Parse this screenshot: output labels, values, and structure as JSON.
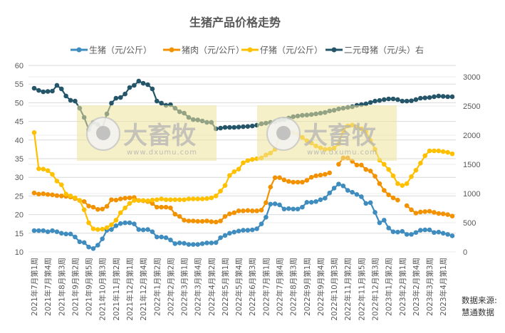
{
  "chart_data": {
    "type": "line",
    "title": "生猪产品价格走势",
    "legend_position": "top",
    "grid": true,
    "y_left": {
      "ylim": [
        10,
        60
      ],
      "ticks": [
        10,
        15,
        20,
        25,
        30,
        35,
        40,
        45,
        50,
        55,
        60
      ]
    },
    "y_right": {
      "ylim": [
        0,
        3000
      ],
      "ticks": [
        0,
        500,
        1000,
        1500,
        2000,
        2500,
        3000
      ]
    },
    "x_tick_labels": [
      "2021年7月第1周",
      "2021年7月第4周",
      "2021年8月第3周",
      "2021年9月第2周",
      "2021年9月第5周",
      "2021年10月第3周",
      "2021年11月第2周",
      "2021年12月第1周",
      "2021年12月第4周",
      "2022年1月第2周",
      "2022年2月第2周",
      "2022年3月第1周",
      "2022年3月第4周",
      "2022年4月第2周",
      "2022年5月第1周",
      "2022年5月第4周",
      "2022年6月第3周",
      "2022年7月第1周",
      "2022年7月第4周",
      "2022年8月第3周",
      "2022年9月第1周",
      "2022年9月第4周",
      "2022年10月第3周",
      "2022年11月第2周",
      "2022年11月第5周",
      "2022年12月第3周",
      "2023年1月第2周",
      "2023年2月第1周",
      "2023年2月第4周",
      "2023年3月第3周",
      "2023年4月第1周"
    ],
    "x_tick_every": 3,
    "series": [
      {
        "name": "生猪（元/公斤）",
        "axis": "left",
        "color": "#3F8CBF",
        "values": [
          15.7,
          15.7,
          15.7,
          15.4,
          15.7,
          15.4,
          15.0,
          14.8,
          14.8,
          14.0,
          12.7,
          12.5,
          11.3,
          10.9,
          11.8,
          13.5,
          15.8,
          16.0,
          17.0,
          17.6,
          17.8,
          17.8,
          17.5,
          16.0,
          15.9,
          16.0,
          15.4,
          14.0,
          14.0,
          13.8,
          13.2,
          12.2,
          12.4,
          12.3,
          12.0,
          12.0,
          12.0,
          12.2,
          12.4,
          12.4,
          12.5,
          13.8,
          14.4,
          15.0,
          15.3,
          15.6,
          15.8,
          15.8,
          15.9,
          16.2,
          17.5,
          19.3,
          22.8,
          22.9,
          22.6,
          21.5,
          21.6,
          21.5,
          21.5,
          22.0,
          23.3,
          23.3,
          23.5,
          24.0,
          24.4,
          25.8,
          27.1,
          28.2,
          27.7,
          26.5,
          26.0,
          25.4,
          24.8,
          23.0,
          23.2,
          20.6,
          17.8,
          18.5,
          16.4,
          15.4,
          15.3,
          15.5,
          14.7,
          14.7,
          15.2,
          15.8,
          15.9,
          15.9,
          15.2,
          15.3,
          15.0,
          14.7,
          14.3
        ]
      },
      {
        "name": "猪肉（元/公斤）",
        "axis": "left",
        "color": "#F39200",
        "values": [
          25.8,
          25.5,
          25.6,
          25.4,
          25.3,
          25.1,
          25.0,
          24.9,
          24.7,
          24.3,
          23.8,
          23.5,
          22.3,
          22.0,
          21.4,
          21.5,
          22.2,
          24.0,
          23.9,
          24.2,
          24.4,
          24.5,
          24.6,
          23.8,
          23.7,
          23.5,
          23.0,
          22.0,
          22.0,
          22.0,
          21.8,
          20.1,
          19.5,
          18.5,
          18.3,
          18.3,
          18.2,
          18.2,
          18.3,
          18.1,
          18.0,
          18.3,
          19.5,
          20.2,
          20.5,
          21.0,
          21.0,
          21.1,
          21.0,
          21.0,
          21.2,
          23.2,
          27.4,
          29.9,
          29.9,
          29.3,
          28.9,
          28.7,
          28.7,
          28.7,
          29.2,
          30.0,
          30.4,
          30.6,
          30.8,
          31.2,
          null,
          33.5,
          35.2,
          35.2,
          34.3,
          33.3,
          33.3,
          32.1,
          31.7,
          30.3,
          28.3,
          26.5,
          25.3,
          24.5,
          23.9,
          null,
          22.4,
          21.3,
          20.4,
          20.7,
          20.8,
          20.9,
          20.6,
          20.3,
          20.2,
          20.0,
          19.6
        ]
      },
      {
        "name": "仔猪（元/公斤）",
        "axis": "left",
        "color": "#FFC000",
        "values": [
          42.0,
          32.3,
          32.2,
          31.8,
          30.8,
          29.0,
          28.0,
          25.5,
          25.0,
          24.5,
          23.8,
          21.3,
          17.8,
          16.2,
          16.0,
          16.1,
          16.5,
          17.3,
          18.5,
          20.5,
          21.8,
          23.0,
          23.8,
          23.8,
          23.8,
          23.7,
          23.9,
          24.0,
          24.2,
          24.0,
          24.0,
          24.0,
          24.0,
          24.0,
          24.2,
          24.2,
          24.2,
          24.2,
          24.3,
          24.5,
          25.0,
          26.3,
          27.8,
          30.5,
          31.5,
          32.2,
          33.9,
          34.5,
          34.8,
          35.0,
          35.2,
          36.0,
          36.5,
          37.5,
          40.9,
          41.5,
          42.3,
          42.0,
          41.6,
          40.7,
          39.8,
          39.2,
          38.4,
          37.9,
          37.5,
          37.6,
          37.8,
          39.0,
          42.5,
          43.8,
          44.0,
          43.5,
          43.0,
          42.2,
          39.9,
          37.5,
          34.6,
          33.5,
          32.1,
          30.4,
          28.3,
          27.8,
          28.3,
          30.2,
          31.9,
          33.8,
          35.8,
          37.1,
          37.1,
          37.1,
          36.9,
          36.7,
          36.3
        ]
      },
      {
        "name": "二元母猪（元/头）右",
        "axis": "right",
        "color": "#245569",
        "values": [
          2805,
          2768,
          2744,
          2750,
          2756,
          2854,
          2793,
          2671,
          2598,
          2585,
          2463,
          2305,
          2097,
          2220,
          2183,
          2122,
          2366,
          2549,
          2634,
          2646,
          2707,
          2817,
          2854,
          2927,
          2890,
          2866,
          2793,
          2585,
          2549,
          2512,
          2524,
          2463,
          2402,
          2378,
          2305,
          2268,
          2262,
          2244,
          2220,
          2220,
          2110,
          2122,
          2134,
          2134,
          2134,
          2140,
          2146,
          2150,
          2158,
          2171,
          2195,
          2207,
          2220,
          2230,
          2256,
          2268,
          2293,
          2317,
          2329,
          2341,
          2345,
          2354,
          2366,
          2378,
          2390,
          2415,
          2427,
          2451,
          2463,
          2476,
          2488,
          2512,
          2525,
          2537,
          2561,
          2585,
          2595,
          2610,
          2622,
          2622,
          2610,
          2585,
          2585,
          2590,
          2610,
          2634,
          2640,
          2646,
          2659,
          2671,
          2665,
          2660,
          2659
        ]
      }
    ]
  },
  "watermark": {
    "brand": "大畜牧",
    "url": "www.dxumu.com"
  },
  "source": {
    "line1": "数据来源:",
    "line2": "慧通数据"
  }
}
